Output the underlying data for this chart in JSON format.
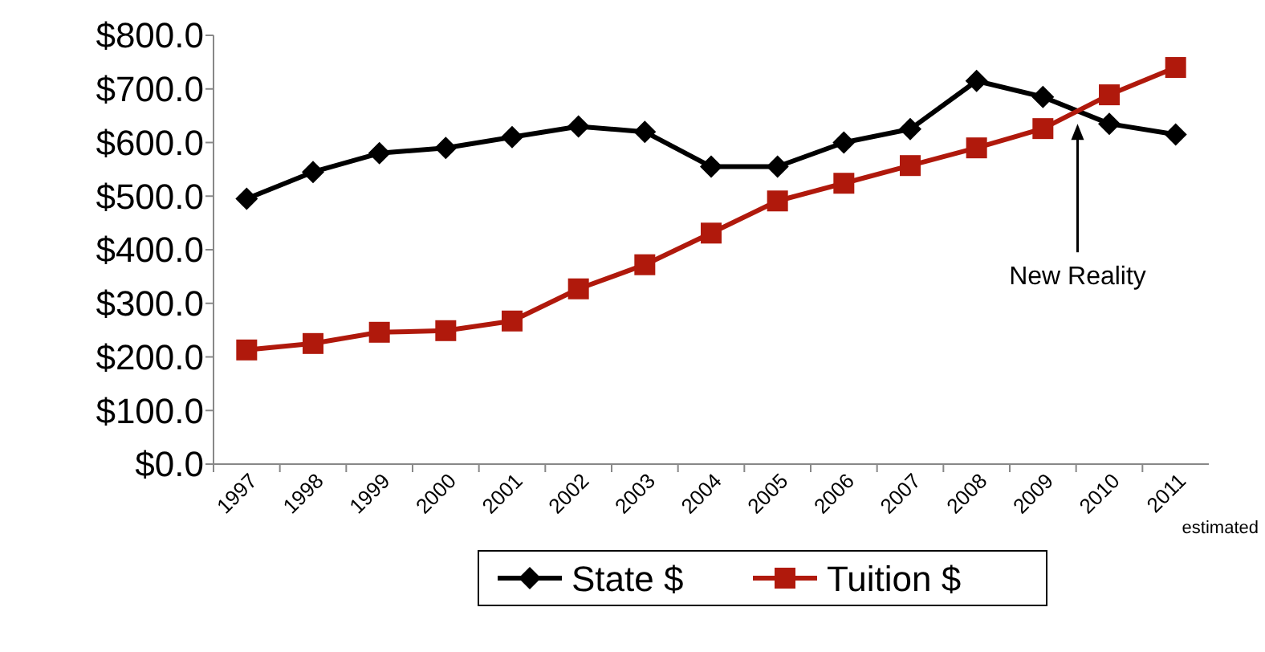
{
  "chart_data": {
    "type": "line",
    "categories": [
      "1997",
      "1998",
      "1999",
      "2000",
      "2001",
      "2002",
      "2003",
      "2004",
      "2005",
      "2006",
      "2007",
      "2008",
      "2009",
      "2010",
      "2011"
    ],
    "series": [
      {
        "name": "State $",
        "color": "#000000",
        "marker": "diamond",
        "values": [
          495,
          545,
          580,
          590,
          610,
          630,
          620,
          555,
          555,
          600,
          625,
          715,
          685,
          635,
          615
        ]
      },
      {
        "name": "Tuition $",
        "color": "#b0190c",
        "marker": "square",
        "values": [
          213,
          225,
          246,
          249,
          267,
          327,
          372,
          431,
          491,
          524,
          557,
          590,
          626,
          689,
          740
        ]
      }
    ],
    "ylim": [
      0,
      800
    ],
    "yticks": [
      {
        "value": 0,
        "label": "$0.0"
      },
      {
        "value": 100,
        "label": "$100.0"
      },
      {
        "value": 200,
        "label": "$200.0"
      },
      {
        "value": 300,
        "label": "$300.0"
      },
      {
        "value": 400,
        "label": "$400.0"
      },
      {
        "value": 500,
        "label": "$500.0"
      },
      {
        "value": 600,
        "label": "$600.0"
      },
      {
        "value": 700,
        "label": "$700.0"
      },
      {
        "value": 800,
        "label": "$800.0"
      }
    ],
    "grid": false,
    "legend": "bottom",
    "line_style": "solid",
    "annotations": [
      "New Reality",
      "estimated"
    ]
  }
}
